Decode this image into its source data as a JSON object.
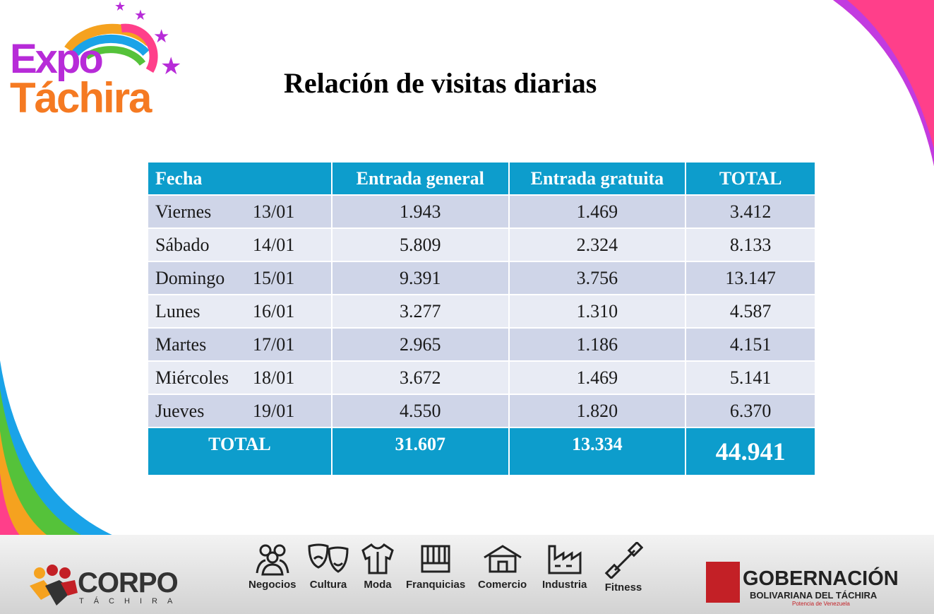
{
  "logo": {
    "line1": "Expo",
    "line2": "Táchira"
  },
  "title": "Relación de visitas diarias",
  "table": {
    "headers": [
      "Fecha",
      "Entrada general",
      "Entrada gratuita",
      "TOTAL"
    ],
    "rows": [
      {
        "day": "Viernes",
        "date": "13/01",
        "general": "1.943",
        "gratuita": "1.469",
        "total": "3.412"
      },
      {
        "day": "Sábado",
        "date": "14/01",
        "general": "5.809",
        "gratuita": "2.324",
        "total": "8.133"
      },
      {
        "day": "Domingo",
        "date": "15/01",
        "general": "9.391",
        "gratuita": "3.756",
        "total": "13.147"
      },
      {
        "day": "Lunes",
        "date": "16/01",
        "general": "3.277",
        "gratuita": "1.310",
        "total": "4.587"
      },
      {
        "day": "Martes",
        "date": "17/01",
        "general": "2.965",
        "gratuita": "1.186",
        "total": "4.151"
      },
      {
        "day": "Miércoles",
        "date": "18/01",
        "general": "3.672",
        "gratuita": "1.469",
        "total": "5.141"
      },
      {
        "day": "Jueves",
        "date": "19/01",
        "general": "4.550",
        "gratuita": "1.820",
        "total": "6.370"
      }
    ],
    "total": {
      "label": "TOTAL",
      "general": "31.607",
      "gratuita": "13.334",
      "total": "44.941"
    }
  },
  "footer": {
    "corpo": {
      "name": "CORPO",
      "sub": "TÁCHIRA"
    },
    "categories": [
      {
        "label": "Negocios",
        "icon": "people-icon"
      },
      {
        "label": "Cultura",
        "icon": "theater-masks-icon"
      },
      {
        "label": "Moda",
        "icon": "shirt-icon"
      },
      {
        "label": "Franquicias",
        "icon": "storefront-icon"
      },
      {
        "label": "Comercio",
        "icon": "house-icon"
      },
      {
        "label": "Industria",
        "icon": "factory-icon"
      },
      {
        "label": "Fitness",
        "icon": "dumbbell-icon"
      }
    ],
    "gobernacion": {
      "line1": "GOBERNACIÓN",
      "line2": "BOLIVARIANA DEL TÁCHIRA",
      "line3": "Potencia de Venezuela"
    }
  },
  "colors": {
    "header": "#0d9dcc",
    "row_odd": "#cfd5e8",
    "row_even": "#e8ebf4",
    "brand_purple": "#b72bd8",
    "brand_orange": "#f57a22"
  }
}
